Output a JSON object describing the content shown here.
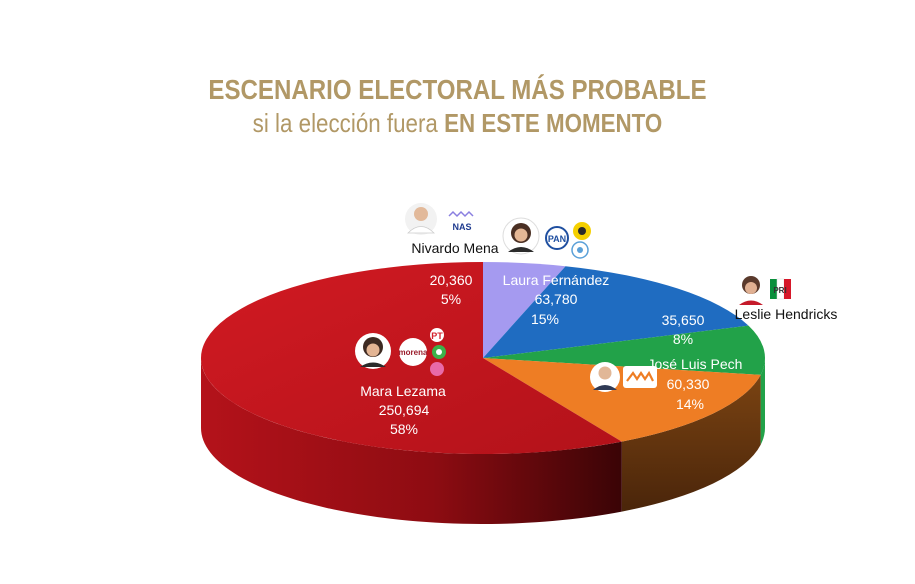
{
  "title": {
    "line1": "ESCENARIO ELECTORAL MÁS PROBABLE",
    "line2_regular": "si la elección fuera ",
    "line2_bold": "EN ESTE MOMENTO"
  },
  "chart_data": {
    "type": "pie",
    "title": "ESCENARIO ELECTORAL MÁS PROBABLE si la elección fuera EN ESTE MOMENTO",
    "slices": [
      {
        "name": "Nivardo Mena",
        "value": 20360,
        "value_label": "20,360",
        "percent": 5,
        "percent_label": "5%",
        "color": "#a59af0",
        "party": "NAS"
      },
      {
        "name": "Laura Fernández",
        "value": 63780,
        "value_label": "63,780",
        "percent": 15,
        "percent_label": "15%",
        "color": "#1f6cc1",
        "party": "PAN PRD MC"
      },
      {
        "name": "Leslie Hendricks",
        "value": 35650,
        "value_label": "35,650",
        "percent": 8,
        "percent_label": "8%",
        "color": "#22a249",
        "party": "PRI"
      },
      {
        "name": "José Luis Pech",
        "value": 60330,
        "value_label": "60,330",
        "percent": 14,
        "percent_label": "14%",
        "color": "#ee7d24",
        "party": "MC"
      },
      {
        "name": "Mara Lezama",
        "value": 250694,
        "value_label": "250,694",
        "percent": 58,
        "percent_label": "58%",
        "color": "#c8161d",
        "party": "morena PT PVEM"
      }
    ]
  },
  "colors": {
    "title": "#b19866",
    "side_dark": "#5a2e0e",
    "red_dark": "#6e0a0e"
  }
}
